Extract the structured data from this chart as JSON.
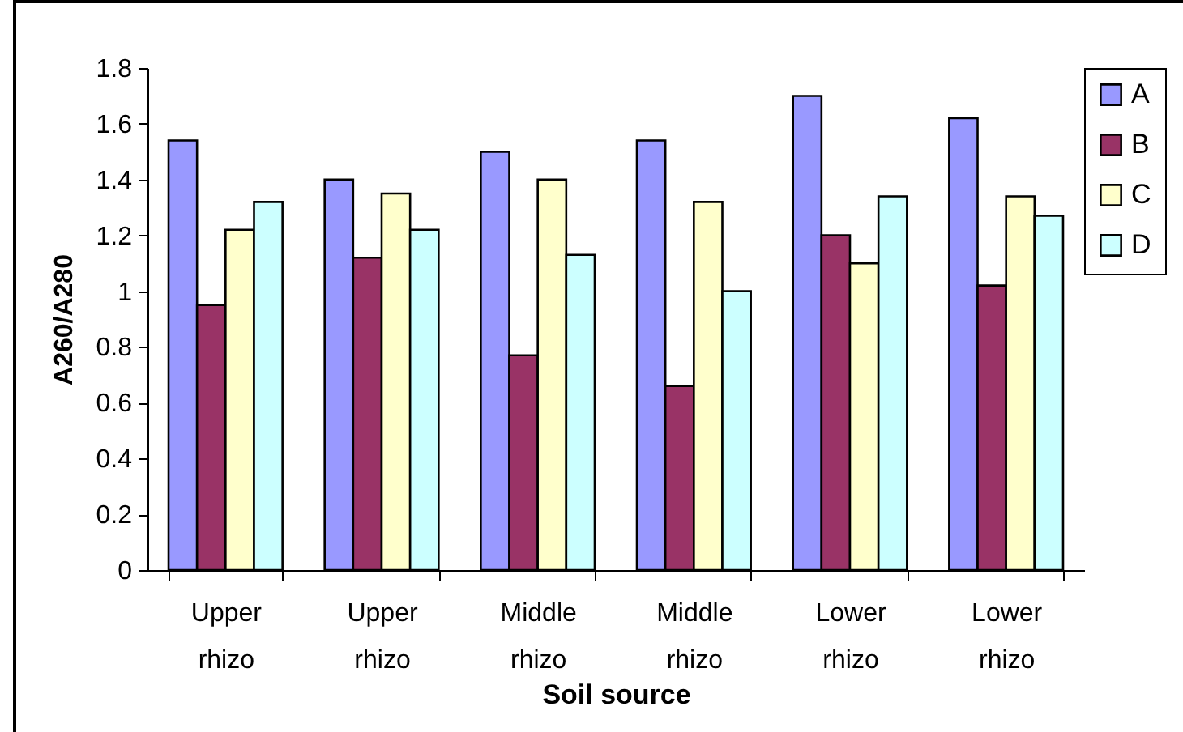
{
  "chart_data": {
    "type": "bar",
    "xlabel": "Soil source",
    "ylabel": "A260/A280",
    "categories": [
      "Upper rhizo",
      "Upper rhizo",
      "Middle rhizo",
      "Middle rhizo",
      "Lower rhizo",
      "Lower rhizo"
    ],
    "series": [
      {
        "name": "A",
        "color": "#9999ff",
        "values": [
          1.54,
          1.4,
          1.5,
          1.54,
          1.7,
          1.62
        ]
      },
      {
        "name": "B",
        "color": "#993366",
        "values": [
          0.95,
          1.12,
          0.77,
          0.66,
          1.2,
          1.02
        ]
      },
      {
        "name": "C",
        "color": "#ffffcc",
        "values": [
          1.22,
          1.35,
          1.4,
          1.32,
          1.1,
          1.34
        ]
      },
      {
        "name": "D",
        "color": "#ccffff",
        "values": [
          1.32,
          1.22,
          1.13,
          1.0,
          1.34,
          1.27
        ]
      }
    ],
    "ylim": [
      0,
      1.8
    ],
    "yticks": [
      0,
      0.2,
      0.4,
      0.6,
      0.8,
      1,
      1.2,
      1.4,
      1.6,
      1.8
    ],
    "grid": false,
    "legend": "right"
  }
}
